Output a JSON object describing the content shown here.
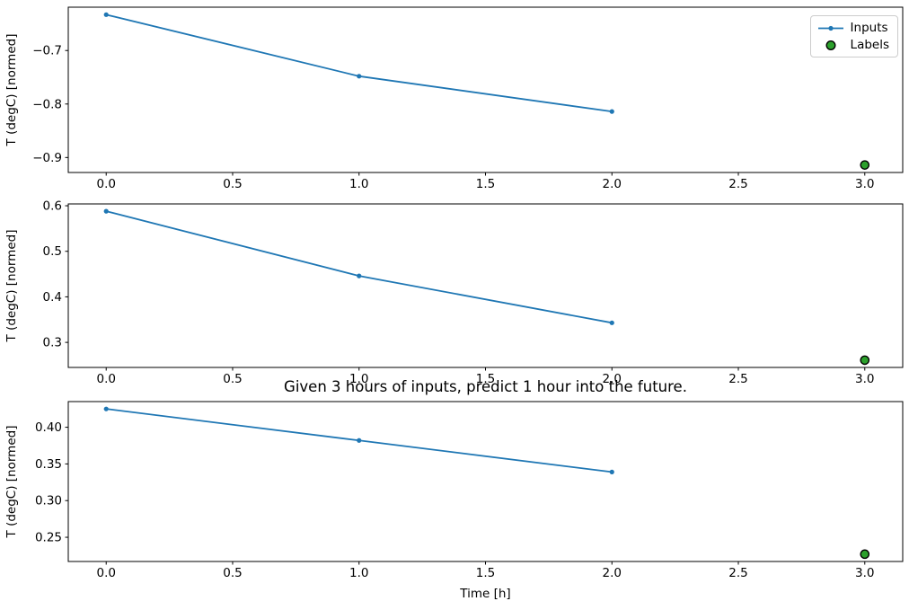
{
  "figure": {
    "title": "Given 3 hours of inputs, predict 1 hour into the future.",
    "xlabel": "Time [h]",
    "background": "#ffffff",
    "spine_color": "#000000"
  },
  "legend": {
    "position": "upper-right",
    "items": [
      {
        "label": "Inputs",
        "type": "line-marker",
        "color": "#1f77b4"
      },
      {
        "label": "Labels",
        "type": "circle",
        "fill": "#2ca02c",
        "edge": "#000000"
      }
    ]
  },
  "chart_data": [
    {
      "type": "line",
      "ylabel": "T (degC) [normed]",
      "xlim": [
        -0.15,
        3.15
      ],
      "ylim": [
        -0.928,
        -0.619
      ],
      "xticks": [
        0.0,
        0.5,
        1.0,
        1.5,
        2.0,
        2.5,
        3.0
      ],
      "xticklabels": [
        "0.0",
        "0.5",
        "1.0",
        "1.5",
        "2.0",
        "2.5",
        "3.0"
      ],
      "yticks": [
        -0.9,
        -0.8,
        -0.7
      ],
      "yticklabels": [
        "−0.9",
        "−0.8",
        "−0.7"
      ],
      "grid": false,
      "series": [
        {
          "name": "Inputs",
          "type": "line",
          "color": "#1f77b4",
          "x": [
            0,
            1,
            2
          ],
          "y": [
            -0.633,
            -0.748,
            -0.814
          ]
        },
        {
          "name": "Labels",
          "type": "scatter",
          "color": "#2ca02c",
          "edge": "#000000",
          "x": [
            3
          ],
          "y": [
            -0.914
          ]
        }
      ]
    },
    {
      "type": "line",
      "ylabel": "T (degC) [normed]",
      "xlim": [
        -0.15,
        3.15
      ],
      "ylim": [
        0.245,
        0.604
      ],
      "xticks": [
        0.0,
        0.5,
        1.0,
        1.5,
        2.0,
        2.5,
        3.0
      ],
      "xticklabels": [
        "0.0",
        "0.5",
        "1.0",
        "1.5",
        "2.0",
        "2.5",
        "3.0"
      ],
      "yticks": [
        0.3,
        0.4,
        0.5,
        0.6
      ],
      "yticklabels": [
        "0.3",
        "0.4",
        "0.5",
        "0.6"
      ],
      "grid": false,
      "series": [
        {
          "name": "Inputs",
          "type": "line",
          "color": "#1f77b4",
          "x": [
            0,
            1,
            2
          ],
          "y": [
            0.588,
            0.446,
            0.343
          ]
        },
        {
          "name": "Labels",
          "type": "scatter",
          "color": "#2ca02c",
          "edge": "#000000",
          "x": [
            3
          ],
          "y": [
            0.261
          ]
        }
      ]
    },
    {
      "type": "line",
      "ylabel": "T (degC) [normed]",
      "xlim": [
        -0.15,
        3.15
      ],
      "ylim": [
        0.217,
        0.435
      ],
      "xticks": [
        0.0,
        0.5,
        1.0,
        1.5,
        2.0,
        2.5,
        3.0
      ],
      "xticklabels": [
        "0.0",
        "0.5",
        "1.0",
        "1.5",
        "2.0",
        "2.5",
        "3.0"
      ],
      "yticks": [
        0.25,
        0.3,
        0.35,
        0.4
      ],
      "yticklabels": [
        "0.25",
        "0.30",
        "0.35",
        "0.40"
      ],
      "grid": false,
      "series": [
        {
          "name": "Inputs",
          "type": "line",
          "color": "#1f77b4",
          "x": [
            0,
            1,
            2
          ],
          "y": [
            0.425,
            0.382,
            0.339
          ]
        },
        {
          "name": "Labels",
          "type": "scatter",
          "color": "#2ca02c",
          "edge": "#000000",
          "x": [
            3
          ],
          "y": [
            0.227
          ]
        }
      ]
    }
  ]
}
